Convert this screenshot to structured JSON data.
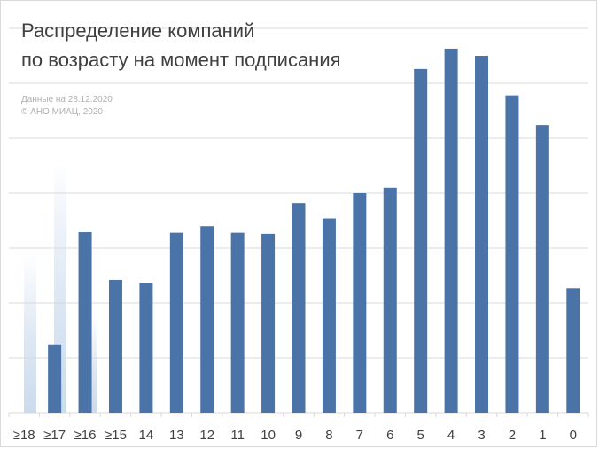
{
  "title_line1": "Распределение компаний",
  "title_line2": "по возрасту на момент подписания",
  "note_line1": "Данные на 28.12.2020",
  "note_line2": "© АНО МИАЦ, 2020",
  "colors": {
    "bar": "#4a74a8",
    "grid": "#d9d9d9",
    "text": "#404040",
    "note": "#b0b0b0",
    "decor": "#c5d6eb"
  },
  "chart_data": {
    "type": "bar",
    "title": "Распределение компаний по возрасту на момент подписания",
    "xlabel": "",
    "ylabel": "",
    "categories": [
      "≥18",
      "≥17",
      "≥16",
      "≥15",
      "14",
      "13",
      "12",
      "11",
      "10",
      "9",
      "8",
      "7",
      "6",
      "5",
      "4",
      "3",
      "2",
      "1",
      "0"
    ],
    "values": [
      0,
      12.3,
      32.9,
      24.2,
      23.7,
      32.8,
      34.0,
      32.8,
      32.6,
      38.2,
      35.4,
      40.0,
      41.0,
      62.6,
      66.3,
      65.0,
      57.8,
      52.4,
      22.7
    ],
    "ylim": [
      0,
      70
    ],
    "grid": true,
    "legend": "none",
    "gridlines_count": 7
  }
}
